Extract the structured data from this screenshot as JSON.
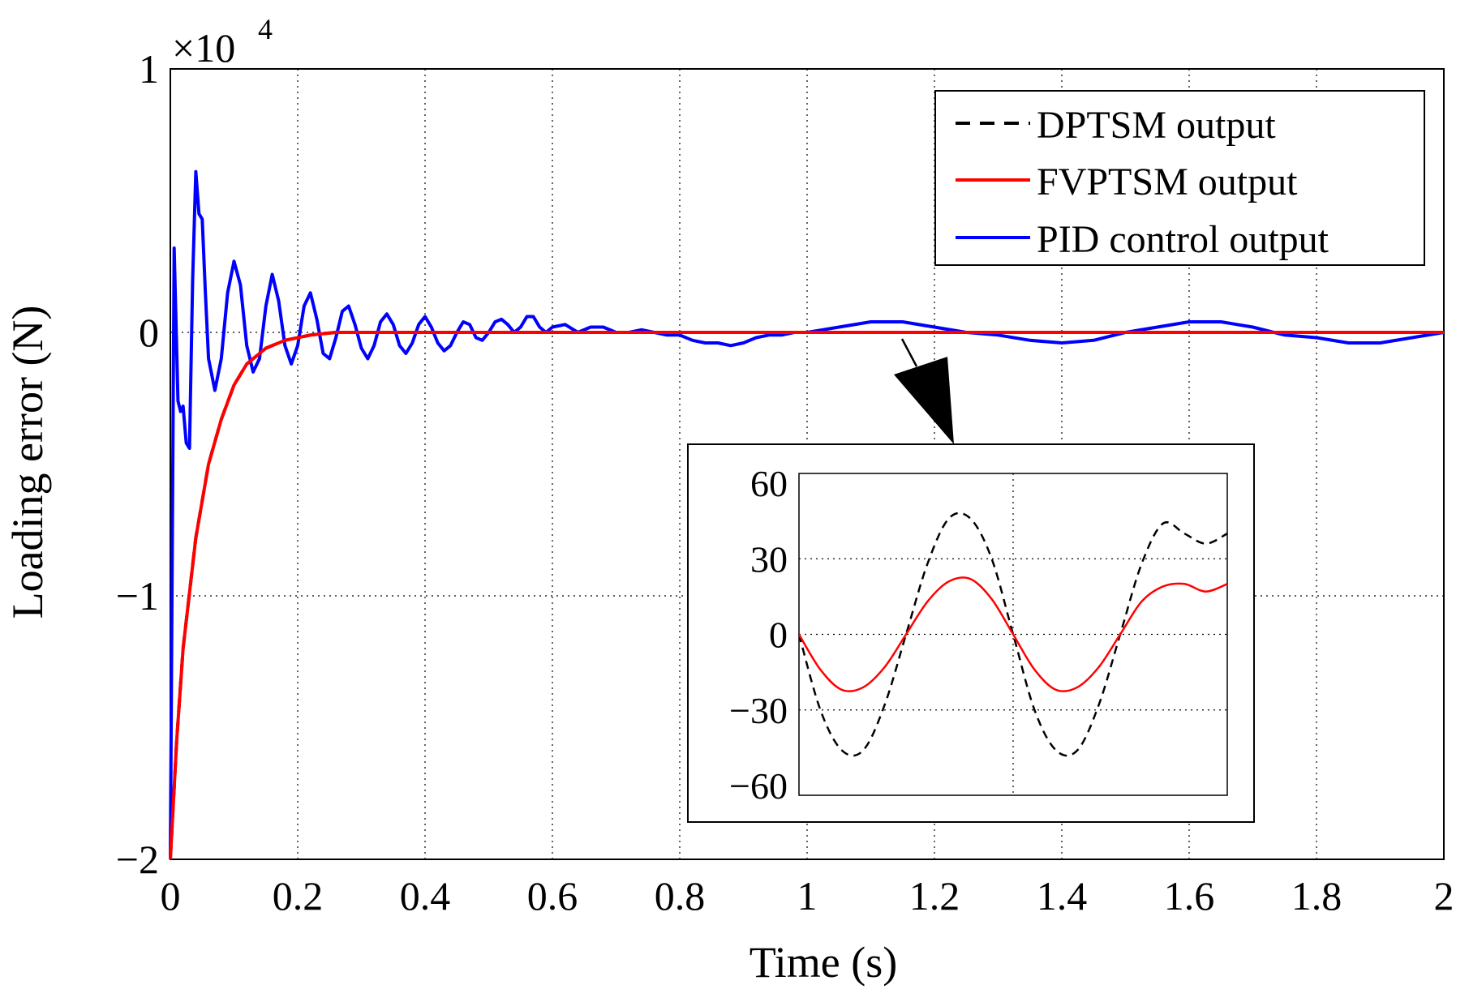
{
  "chart_data": [
    {
      "type": "line",
      "title": "",
      "xlabel": "Time (s)",
      "ylabel": "Loading error (N)",
      "y_exponent_label": "×10",
      "y_exponent_power": "4",
      "xlim": [
        0,
        2
      ],
      "ylim": [
        -2,
        1
      ],
      "y_scale_factor": 10000,
      "x_ticks": [
        "0",
        "0.2",
        "0.4",
        "0.6",
        "0.8",
        "1",
        "1.2",
        "1.4",
        "1.6",
        "1.8",
        "2"
      ],
      "y_ticks": [
        "1",
        "0",
        "−1",
        "−2"
      ],
      "grid": true,
      "legend_position": "top-right",
      "series": [
        {
          "name": "DPTSM output",
          "color": "#000000",
          "style": "dashed",
          "x": [
            0,
            0.01,
            0.02,
            0.04,
            0.06,
            0.08,
            0.1,
            0.12,
            0.15,
            0.18,
            0.22,
            0.26,
            0.3,
            0.4,
            0.5,
            0.6,
            0.8,
            1.0,
            1.2,
            1.4,
            1.6,
            1.8,
            2.0
          ],
          "y": [
            -2.0,
            -1.55,
            -1.2,
            -0.78,
            -0.5,
            -0.33,
            -0.2,
            -0.12,
            -0.06,
            -0.03,
            -0.01,
            0.0,
            0.0,
            0.0,
            0.0,
            0.0,
            0.0,
            0.0,
            0.0,
            0.0,
            0.0,
            0.0,
            0.0
          ]
        },
        {
          "name": "FVPTSM output",
          "color": "#ff0000",
          "style": "solid",
          "x": [
            0,
            0.01,
            0.02,
            0.04,
            0.06,
            0.08,
            0.1,
            0.12,
            0.15,
            0.18,
            0.22,
            0.26,
            0.3,
            0.4,
            0.5,
            0.6,
            0.8,
            1.0,
            1.2,
            1.4,
            1.6,
            1.8,
            2.0
          ],
          "y": [
            -2.0,
            -1.55,
            -1.2,
            -0.78,
            -0.5,
            -0.33,
            -0.2,
            -0.12,
            -0.06,
            -0.03,
            -0.01,
            0.0,
            0.0,
            0.0,
            0.0,
            0.0,
            0.0,
            0.0,
            0.0,
            0.0,
            0.0,
            0.0,
            0.0
          ]
        },
        {
          "name": "PID control output",
          "color": "#0000ff",
          "style": "solid",
          "x": [
            0,
            0.006,
            0.012,
            0.016,
            0.02,
            0.025,
            0.03,
            0.035,
            0.04,
            0.045,
            0.05,
            0.055,
            0.06,
            0.07,
            0.08,
            0.09,
            0.1,
            0.11,
            0.12,
            0.13,
            0.14,
            0.15,
            0.16,
            0.17,
            0.18,
            0.19,
            0.2,
            0.21,
            0.22,
            0.23,
            0.24,
            0.25,
            0.26,
            0.27,
            0.28,
            0.29,
            0.3,
            0.31,
            0.32,
            0.33,
            0.34,
            0.35,
            0.36,
            0.37,
            0.38,
            0.39,
            0.4,
            0.41,
            0.42,
            0.43,
            0.44,
            0.45,
            0.46,
            0.47,
            0.48,
            0.49,
            0.5,
            0.51,
            0.52,
            0.53,
            0.54,
            0.55,
            0.56,
            0.57,
            0.58,
            0.59,
            0.6,
            0.62,
            0.64,
            0.66,
            0.68,
            0.7,
            0.72,
            0.74,
            0.76,
            0.78,
            0.8,
            0.82,
            0.84,
            0.86,
            0.88,
            0.9,
            0.92,
            0.94,
            0.96,
            0.98,
            1.0,
            1.05,
            1.1,
            1.15,
            1.2,
            1.25,
            1.3,
            1.35,
            1.4,
            1.45,
            1.5,
            1.55,
            1.6,
            1.65,
            1.7,
            1.75,
            1.8,
            1.85,
            1.9,
            1.95,
            2.0
          ],
          "y": [
            -2.0,
            0.32,
            -0.26,
            -0.3,
            -0.28,
            -0.42,
            -0.44,
            0.2,
            0.61,
            0.45,
            0.43,
            0.15,
            -0.1,
            -0.22,
            -0.1,
            0.15,
            0.27,
            0.18,
            -0.05,
            -0.15,
            -0.1,
            0.1,
            0.22,
            0.12,
            -0.05,
            -0.12,
            -0.05,
            0.1,
            0.15,
            0.05,
            -0.08,
            -0.1,
            -0.02,
            0.08,
            0.1,
            0.03,
            -0.06,
            -0.1,
            -0.05,
            0.04,
            0.07,
            0.03,
            -0.05,
            -0.08,
            -0.04,
            0.03,
            0.06,
            0.02,
            -0.04,
            -0.07,
            -0.05,
            0.0,
            0.04,
            0.03,
            -0.02,
            -0.03,
            0.0,
            0.04,
            0.05,
            0.03,
            0.0,
            0.02,
            0.06,
            0.06,
            0.02,
            0.0,
            0.02,
            0.03,
            0.0,
            0.02,
            0.02,
            0.0,
            0.0,
            0.01,
            0.0,
            -0.01,
            -0.01,
            -0.03,
            -0.04,
            -0.04,
            -0.05,
            -0.04,
            -0.02,
            -0.01,
            -0.01,
            -0.0,
            0.0,
            0.02,
            0.04,
            0.04,
            0.02,
            0.0,
            -0.01,
            -0.03,
            -0.04,
            -0.03,
            0.0,
            0.02,
            0.04,
            0.04,
            0.02,
            -0.01,
            -0.02,
            -0.04,
            -0.04,
            -0.02,
            0.0
          ]
        }
      ],
      "annotation": "zoom-arrow"
    },
    {
      "type": "line",
      "title": "",
      "xlabel": "",
      "ylabel": "",
      "ylim": [
        -60,
        60
      ],
      "y_ticks": [
        "60",
        "30",
        "0",
        "−30",
        "−60"
      ],
      "grid": true,
      "series": [
        {
          "color": "#000000",
          "style": "dashed",
          "x": [
            0,
            0.05,
            0.1,
            0.15,
            0.2,
            0.25,
            0.3,
            0.35,
            0.4,
            0.45,
            0.5,
            0.55,
            0.6,
            0.65,
            0.7,
            0.75,
            0.8,
            0.85,
            0.9,
            0.95,
            1.0
          ],
          "y": [
            0,
            -30,
            -46,
            -46,
            -28,
            0,
            28,
            46,
            46,
            30,
            0,
            -30,
            -46,
            -46,
            -28,
            0,
            28,
            44,
            40,
            36,
            40
          ]
        },
        {
          "color": "#ff0000",
          "style": "solid",
          "x": [
            0,
            0.05,
            0.1,
            0.15,
            0.2,
            0.25,
            0.3,
            0.35,
            0.4,
            0.45,
            0.5,
            0.55,
            0.6,
            0.65,
            0.7,
            0.75,
            0.8,
            0.85,
            0.9,
            0.95,
            1.0
          ],
          "y": [
            0,
            -14,
            -22,
            -21,
            -13,
            0,
            13,
            21,
            22,
            14,
            0,
            -14,
            -22,
            -21,
            -13,
            0,
            13,
            19,
            20,
            17,
            20
          ]
        }
      ]
    }
  ]
}
